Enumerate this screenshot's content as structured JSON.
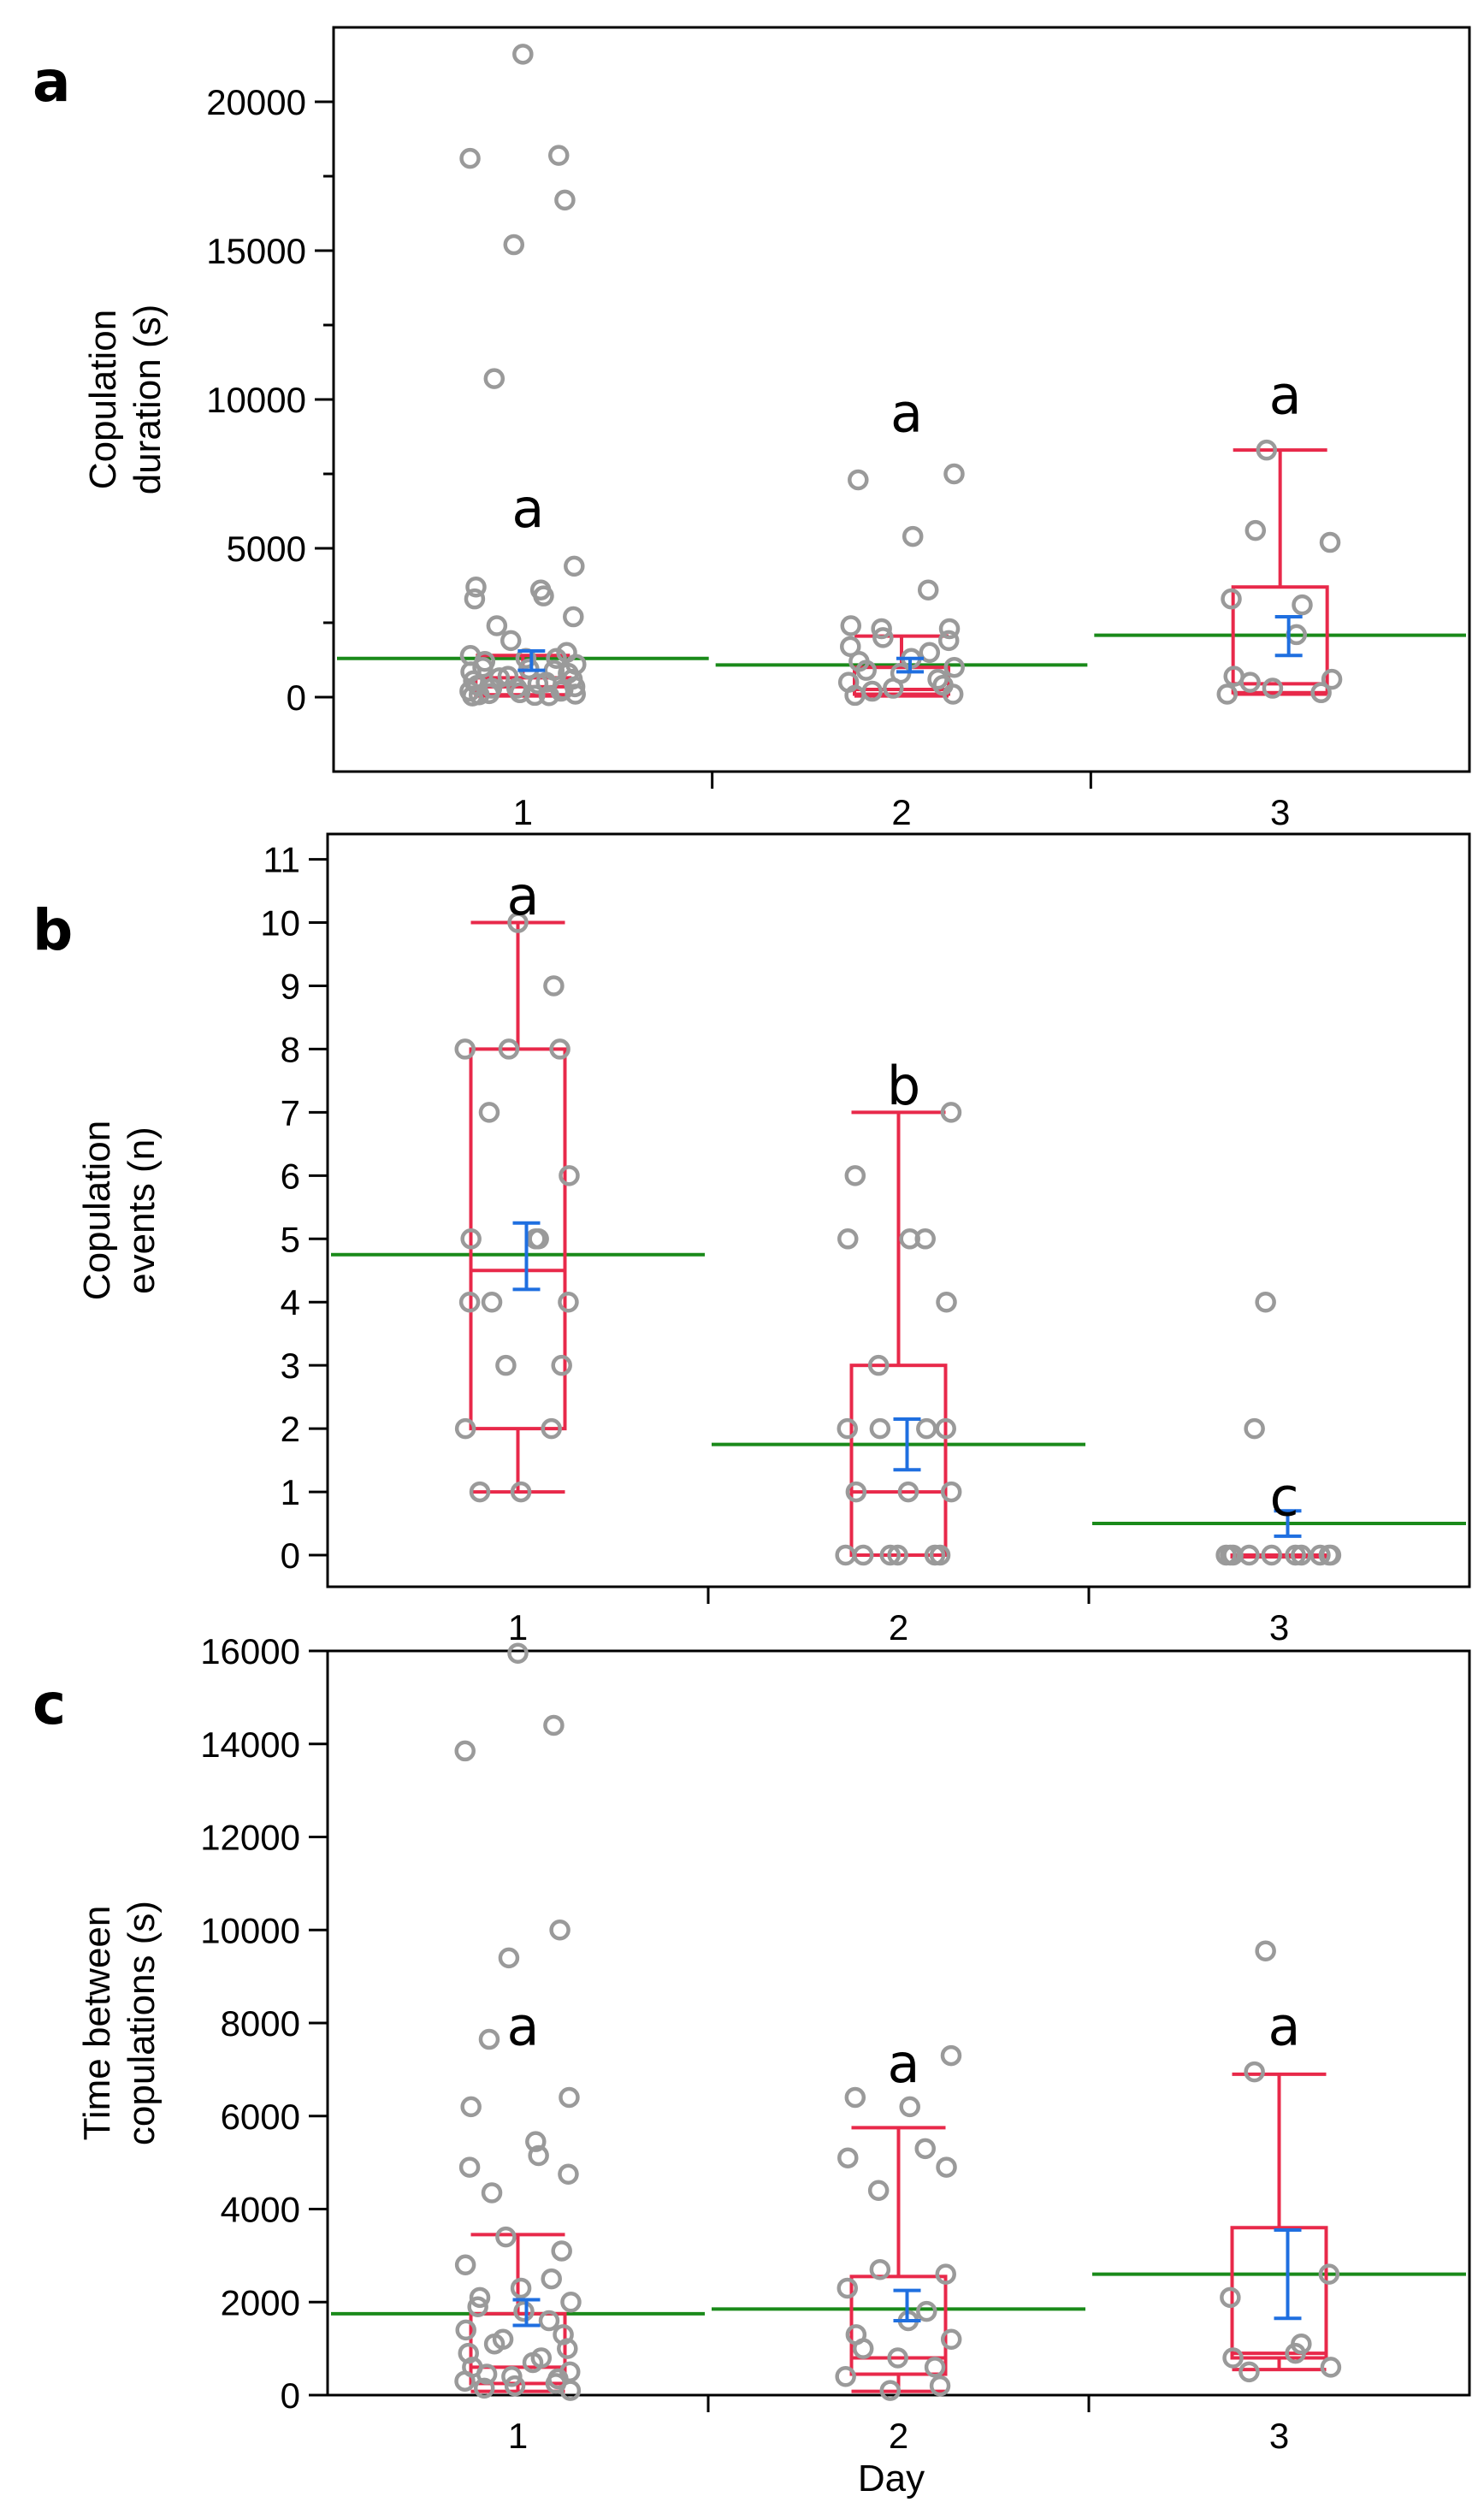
{
  "figure": {
    "x_axis_title": "Day",
    "categories": [
      "1",
      "2",
      "3"
    ]
  },
  "colors": {
    "box": "#e8294a",
    "mean_line": "#1a8a1a",
    "mean_ci": "#1f6fe0",
    "points": "#9a9a9a",
    "axis": "#000000"
  },
  "chart_data": [
    {
      "panel": "a",
      "type": "box",
      "ylabel_lines": [
        "Copulation",
        "duration (s)"
      ],
      "ylim": [
        -2500,
        22500
      ],
      "yticks": [
        0,
        5000,
        10000,
        15000,
        20000
      ],
      "yticks_minor": [
        2500,
        7500,
        12500,
        17500
      ],
      "categories": [
        "1",
        "2",
        "3"
      ],
      "group_labels": [
        "a",
        "a",
        "a"
      ],
      "label_y": [
        6300,
        9500,
        10100
      ],
      "boxes": [
        {
          "min": 40,
          "q1": 80,
          "median": 350,
          "q3": 650,
          "max": 1400
        },
        {
          "min": 40,
          "q1": 100,
          "median": 260,
          "q3": 1000,
          "max": 2050
        },
        {
          "min": 100,
          "q1": 150,
          "median": 450,
          "q3": 3700,
          "max": 8300
        }
      ],
      "grand_means": [
        1300,
        1080,
        2080
      ],
      "mean_ci": [
        {
          "lo": 900,
          "mean": 1150,
          "hi": 1550
        },
        {
          "lo": 850,
          "mean": 1050,
          "hi": 1300
        },
        {
          "lo": 1400,
          "mean": 2050,
          "hi": 2700
        }
      ],
      "points": [
        [
          21600,
          18200,
          18100,
          16700,
          15200,
          10700,
          4400,
          3700,
          3600,
          3400,
          3300,
          2700,
          2400,
          1900,
          1500,
          1400,
          1300,
          1300,
          1200,
          1100,
          1000,
          950,
          900,
          850,
          800,
          700,
          650,
          600,
          550,
          500,
          450,
          400,
          350,
          300,
          300,
          250,
          200,
          200,
          150,
          120,
          100,
          80,
          60,
          50,
          40
        ],
        [
          7500,
          7300,
          5400,
          3600,
          2400,
          2300,
          2300,
          2000,
          1900,
          1700,
          1500,
          1300,
          1200,
          1000,
          900,
          800,
          600,
          500,
          400,
          300,
          200,
          100,
          60
        ],
        [
          8300,
          5600,
          5200,
          3300,
          3100,
          2100,
          700,
          600,
          500,
          300,
          150,
          100
        ]
      ]
    },
    {
      "panel": "b",
      "type": "box",
      "ylabel_lines": [
        "Copulation",
        "events (n)"
      ],
      "ylim": [
        -0.5,
        11.4
      ],
      "yticks": [
        0,
        1,
        2,
        3,
        4,
        5,
        6,
        7,
        8,
        9,
        10,
        11
      ],
      "yticks_minor": [],
      "categories": [
        "1",
        "2",
        "3"
      ],
      "group_labels": [
        "a",
        "b",
        "c"
      ],
      "label_y": [
        10.4,
        7.4,
        0.9
      ],
      "boxes": [
        {
          "min": 1,
          "q1": 2,
          "median": 4.5,
          "q3": 8,
          "max": 10
        },
        {
          "min": 0,
          "q1": 0,
          "median": 1,
          "q3": 3,
          "max": 7
        },
        {
          "min": 0,
          "q1": 0,
          "median": 0,
          "q3": 0,
          "max": 0
        }
      ],
      "grand_means": [
        4.75,
        1.75,
        0.5
      ],
      "mean_ci": [
        {
          "lo": 4.2,
          "mean": 4.75,
          "hi": 5.25
        },
        {
          "lo": 1.35,
          "mean": 1.75,
          "hi": 2.15
        },
        {
          "lo": 0.3,
          "mean": 0.5,
          "hi": 0.7
        }
      ],
      "points": [
        [
          10,
          9,
          8,
          8,
          8,
          7,
          6,
          5,
          5,
          5,
          4,
          4,
          4,
          3,
          3,
          2,
          2,
          1,
          1
        ],
        [
          7,
          6,
          5,
          5,
          5,
          4,
          3,
          2,
          2,
          2,
          2,
          1,
          1,
          1,
          0,
          0,
          0,
          0,
          0,
          0
        ],
        [
          4,
          2,
          0,
          0,
          0,
          0,
          0,
          0,
          0,
          0,
          0,
          0
        ]
      ]
    },
    {
      "panel": "c",
      "type": "box",
      "ylabel_lines": [
        "Time between",
        "copulations (s)"
      ],
      "ylim": [
        0,
        16000
      ],
      "yticks": [
        0,
        2000,
        4000,
        6000,
        8000,
        10000,
        12000,
        14000,
        16000
      ],
      "yticks_minor": [],
      "categories": [
        "1",
        "2",
        "3"
      ],
      "group_labels": [
        "a",
        "a",
        "a"
      ],
      "label_y": [
        7900,
        7100,
        7900
      ],
      "boxes": [
        {
          "min": 80,
          "q1": 250,
          "median": 600,
          "q3": 1750,
          "max": 3450
        },
        {
          "min": 80,
          "q1": 450,
          "median": 800,
          "q3": 2550,
          "max": 5750
        },
        {
          "min": 550,
          "q1": 800,
          "median": 900,
          "q3": 3600,
          "max": 6900
        }
      ],
      "grand_means": [
        1750,
        1850,
        2600
      ],
      "mean_ci": [
        {
          "lo": 1500,
          "mean": 1750,
          "hi": 2050
        },
        {
          "lo": 1600,
          "mean": 1850,
          "hi": 2250
        },
        {
          "lo": 1650,
          "mean": 2600,
          "hi": 3550
        }
      ],
      "points": [
        [
          15950,
          14400,
          13850,
          10000,
          9400,
          7650,
          6400,
          6200,
          5450,
          5150,
          4900,
          4750,
          4350,
          3400,
          3100,
          2800,
          2500,
          2300,
          2100,
          2000,
          1900,
          1800,
          1600,
          1400,
          1300,
          1200,
          1100,
          1000,
          900,
          800,
          700,
          600,
          500,
          450,
          400,
          350,
          300,
          250,
          200,
          150,
          100
        ],
        [
          7300,
          6400,
          6200,
          5300,
          5100,
          4900,
          4400,
          2700,
          2600,
          2300,
          1800,
          1600,
          1300,
          1200,
          1000,
          800,
          600,
          400,
          200,
          100
        ],
        [
          9550,
          6950,
          2600,
          2100,
          1100,
          900,
          800,
          600,
          500
        ]
      ]
    }
  ]
}
